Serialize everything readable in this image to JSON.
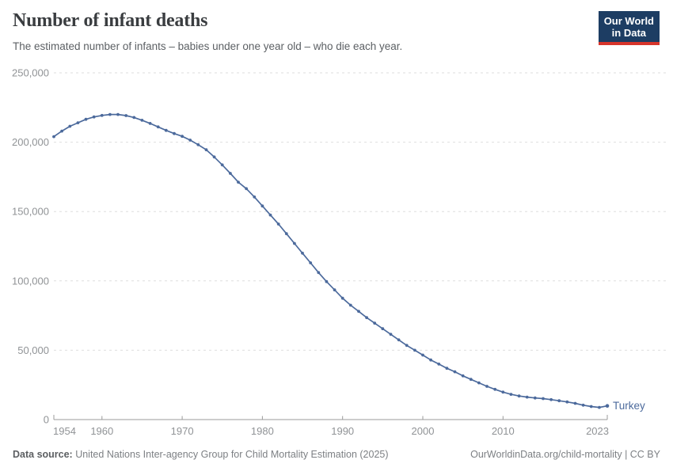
{
  "header": {
    "title": "Number of infant deaths",
    "subtitle": "The estimated number of infants – babies under one year old – who die each year."
  },
  "logo": {
    "line1": "Our World",
    "line2": "in Data",
    "bg_color": "#1d3d63",
    "accent_color": "#d7352b"
  },
  "footer": {
    "source_label": "Data source:",
    "source_text": " United Nations Inter-agency Group for Child Mortality Estimation (2025)",
    "attribution": "OurWorldinData.org/child-mortality | CC BY"
  },
  "chart_data": {
    "type": "line",
    "title": "Number of infant deaths",
    "series_name": "Turkey",
    "line_color": "#4c6a9c",
    "grid": true,
    "legend_position": "end-of-line",
    "xlabel": "",
    "ylabel": "",
    "ylim": [
      0,
      250000
    ],
    "xlim": [
      1954,
      2023
    ],
    "yticks": [
      0,
      50000,
      100000,
      150000,
      200000,
      250000
    ],
    "ytick_labels": [
      "0",
      "50,000",
      "100,000",
      "150,000",
      "200,000",
      "250,000"
    ],
    "xticks": [
      1954,
      1960,
      1970,
      1980,
      1990,
      2000,
      2010,
      2023
    ],
    "xtick_labels": [
      "1954",
      "1960",
      "1970",
      "1980",
      "1990",
      "2000",
      "2010",
      "2023"
    ],
    "x": [
      1954,
      1955,
      1956,
      1957,
      1958,
      1959,
      1960,
      1961,
      1962,
      1963,
      1964,
      1965,
      1966,
      1967,
      1968,
      1969,
      1970,
      1971,
      1972,
      1973,
      1974,
      1975,
      1976,
      1977,
      1978,
      1979,
      1980,
      1981,
      1982,
      1983,
      1984,
      1985,
      1986,
      1987,
      1988,
      1989,
      1990,
      1991,
      1992,
      1993,
      1994,
      1995,
      1996,
      1997,
      1998,
      1999,
      2000,
      2001,
      2002,
      2003,
      2004,
      2005,
      2006,
      2007,
      2008,
      2009,
      2010,
      2011,
      2012,
      2013,
      2014,
      2015,
      2016,
      2017,
      2018,
      2019,
      2020,
      2021,
      2022,
      2023
    ],
    "values": [
      204000,
      208000,
      211500,
      214000,
      216500,
      218200,
      219300,
      220000,
      220000,
      219200,
      217800,
      215800,
      213500,
      211000,
      208500,
      206200,
      204200,
      201500,
      198200,
      194500,
      189300,
      183600,
      177500,
      171200,
      166500,
      160500,
      154000,
      147500,
      141000,
      134000,
      127000,
      120000,
      113000,
      106000,
      99500,
      93500,
      87500,
      82500,
      78000,
      73500,
      69500,
      65500,
      61500,
      57500,
      53500,
      50000,
      46500,
      43000,
      40000,
      37000,
      34500,
      31500,
      29000,
      26500,
      24000,
      21800,
      19800,
      18200,
      17000,
      16200,
      15600,
      15100,
      14400,
      13600,
      12700,
      11700,
      10400,
      9400,
      8800,
      9900
    ]
  }
}
